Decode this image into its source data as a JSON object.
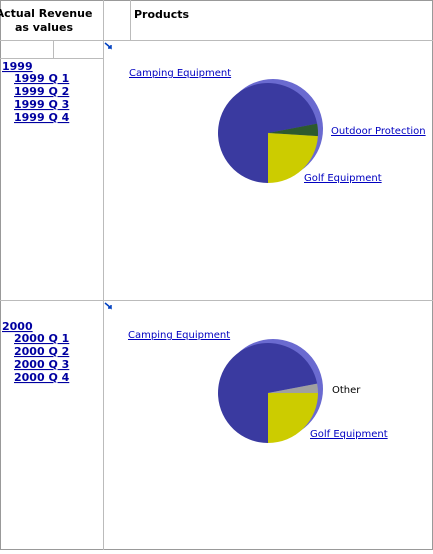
{
  "header": {
    "measure": "Actual Revenue as values",
    "columns": "Products"
  },
  "rows": [
    {
      "year": "1999",
      "quarters": [
        "1999 Q 1",
        "1999 Q 2",
        "1999 Q 3",
        "1999 Q 4"
      ]
    },
    {
      "year": "2000",
      "quarters": [
        "2000 Q 1",
        "2000 Q 2",
        "2000 Q 3",
        "2000 Q 4"
      ]
    }
  ],
  "chart_data": [
    {
      "type": "pie",
      "categories": [
        "Camping Equipment",
        "Outdoor Protection",
        "Golf Equipment"
      ],
      "values": [
        72,
        4,
        24
      ],
      "colors": [
        "#3a3aa0",
        "#2d5a2d",
        "#cccc00"
      ]
    },
    {
      "type": "pie",
      "categories": [
        "Camping Equipment",
        "Other",
        "Golf Equipment"
      ],
      "values": [
        72,
        3,
        25
      ],
      "colors": [
        "#3a3aa0",
        "#a0a0a0",
        "#cccc00"
      ]
    }
  ]
}
